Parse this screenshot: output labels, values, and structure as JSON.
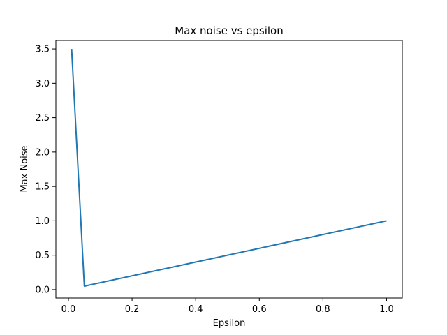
{
  "chart_data": {
    "type": "line",
    "title": "Max noise vs epsilon",
    "xlabel": "Epsilon",
    "ylabel": "Max Noise",
    "xlim": [
      -0.0395,
      1.0495
    ],
    "ylim": [
      -0.1225,
      3.6225
    ],
    "xticks": [
      0.0,
      0.2,
      0.4,
      0.6,
      0.8,
      1.0
    ],
    "xtick_labels": [
      "0.0",
      "0.2",
      "0.4",
      "0.6",
      "0.8",
      "1.0"
    ],
    "yticks": [
      0.0,
      0.5,
      1.0,
      1.5,
      2.0,
      2.5,
      3.0,
      3.5
    ],
    "ytick_labels": [
      "0.0",
      "0.5",
      "1.0",
      "1.5",
      "2.0",
      "2.5",
      "3.0",
      "3.5"
    ],
    "grid": false,
    "series": [
      {
        "color": "#1f77b4",
        "x": [
          0.01,
          0.05,
          1.0
        ],
        "y": [
          3.5,
          0.05,
          1.0
        ]
      }
    ]
  }
}
